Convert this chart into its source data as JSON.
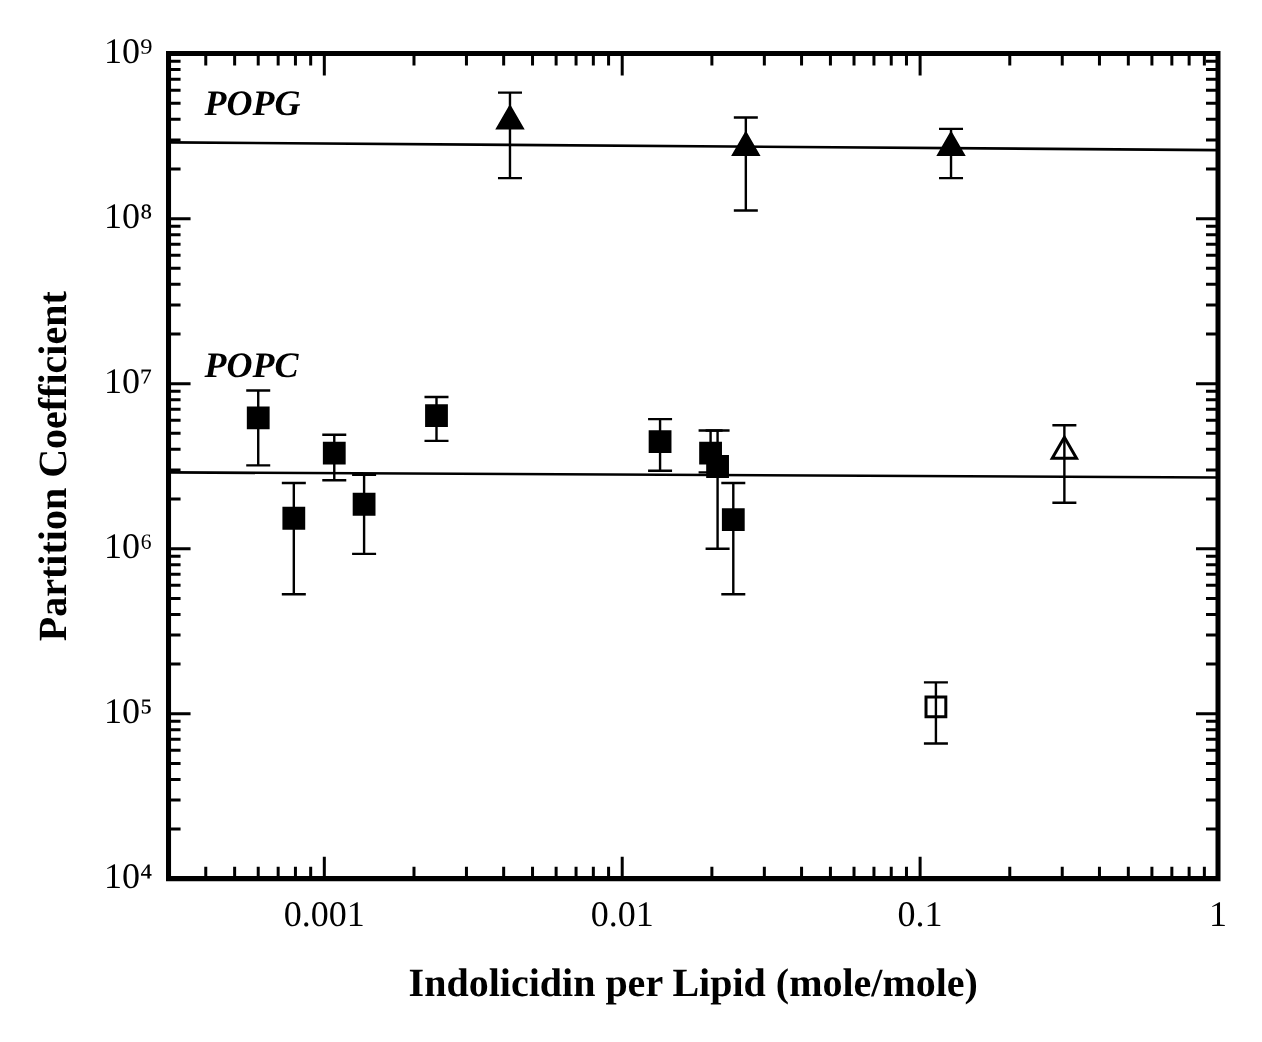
{
  "chart_data": {
    "type": "scatter",
    "xlabel": "Indolicidin per Lipid (mole/mole)",
    "ylabel": "Partition Coefficient",
    "log": "xy",
    "grid": false,
    "legend": false,
    "xlim": [
      0.0003,
      1
    ],
    "ylim": [
      10000,
      1000000000
    ],
    "xticks": [
      {
        "value": 0.0004,
        "label": null
      },
      {
        "value": 0.0005,
        "label": null
      },
      {
        "value": 0.0006,
        "label": null
      },
      {
        "value": 0.0007,
        "label": null
      },
      {
        "value": 0.0008,
        "label": null
      },
      {
        "value": 0.0009,
        "label": null
      },
      0.001,
      {
        "value": 0.002,
        "label": null
      },
      {
        "value": 0.003,
        "label": null
      },
      {
        "value": 0.004,
        "label": null
      },
      {
        "value": 0.005,
        "label": null
      },
      {
        "value": 0.006,
        "label": null
      },
      {
        "value": 0.007,
        "label": null
      },
      {
        "value": 0.008,
        "label": null
      },
      {
        "value": 0.009,
        "label": null
      },
      0.01,
      {
        "value": 0.02,
        "label": null
      },
      {
        "value": 0.03,
        "label": null
      },
      {
        "value": 0.04,
        "label": null
      },
      {
        "value": 0.05,
        "label": null
      },
      {
        "value": 0.06,
        "label": null
      },
      {
        "value": 0.07,
        "label": null
      },
      {
        "value": 0.08,
        "label": null
      },
      {
        "value": 0.09,
        "label": null
      },
      0.1,
      {
        "value": 0.2,
        "label": null
      },
      {
        "value": 0.3,
        "label": null
      },
      {
        "value": 0.4,
        "label": null
      },
      {
        "value": 0.5,
        "label": null
      },
      {
        "value": 0.6,
        "label": null
      },
      {
        "value": 0.7,
        "label": null
      },
      {
        "value": 0.8,
        "label": null
      },
      {
        "value": 0.9,
        "label": null
      },
      1
    ],
    "yticks": [
      {
        "value": 10000,
        "label": "10⁴"
      },
      {
        "value": 20000,
        "label": null
      },
      {
        "value": 30000,
        "label": null
      },
      {
        "value": 40000,
        "label": null
      },
      {
        "value": 50000,
        "label": null
      },
      {
        "value": 60000,
        "label": null
      },
      {
        "value": 70000,
        "label": null
      },
      {
        "value": 80000,
        "label": null
      },
      {
        "value": 90000,
        "label": null
      },
      {
        "value": 100000,
        "label": "10⁵"
      },
      {
        "value": 200000,
        "label": null
      },
      {
        "value": 300000,
        "label": null
      },
      {
        "value": 400000,
        "label": null
      },
      {
        "value": 500000,
        "label": null
      },
      {
        "value": 600000,
        "label": null
      },
      {
        "value": 700000,
        "label": null
      },
      {
        "value": 800000,
        "label": null
      },
      {
        "value": 900000,
        "label": null
      },
      {
        "value": 1000000,
        "label": "10⁶"
      },
      {
        "value": 2000000,
        "label": null
      },
      {
        "value": 3000000,
        "label": null
      },
      {
        "value": 4000000,
        "label": null
      },
      {
        "value": 5000000,
        "label": null
      },
      {
        "value": 6000000,
        "label": null
      },
      {
        "value": 7000000,
        "label": null
      },
      {
        "value": 8000000,
        "label": null
      },
      {
        "value": 9000000,
        "label": null
      },
      {
        "value": 10000000,
        "label": "10⁷"
      },
      {
        "value": 20000000,
        "label": null
      },
      {
        "value": 30000000,
        "label": null
      },
      {
        "value": 40000000,
        "label": null
      },
      {
        "value": 50000000,
        "label": null
      },
      {
        "value": 60000000,
        "label": null
      },
      {
        "value": 70000000,
        "label": null
      },
      {
        "value": 80000000,
        "label": null
      },
      {
        "value": 90000000,
        "label": null
      },
      {
        "value": 100000000,
        "label": "10⁸"
      },
      {
        "value": 200000000,
        "label": null
      },
      {
        "value": 300000000,
        "label": null
      },
      {
        "value": 400000000,
        "label": null
      },
      {
        "value": 500000000,
        "label": null
      },
      {
        "value": 600000000,
        "label": null
      },
      {
        "value": 700000000,
        "label": null
      },
      {
        "value": 800000000,
        "label": null
      },
      {
        "value": 900000000,
        "label": null
      },
      {
        "value": 1000000000,
        "label": "10⁹"
      }
    ],
    "annotations": [
      "POPG",
      "POPC"
    ],
    "series": [
      {
        "marker": "triangle",
        "color": "#000000",
        "x": [
          0.0042,
          0.026,
          0.127
        ],
        "values": [
          390000000,
          270000000,
          270000000
        ],
        "errors": [
          [
            176000000,
            580000000
          ],
          [
            112000000,
            410000000
          ],
          [
            176000000,
            350000000
          ]
        ]
      },
      {
        "marker": "square",
        "color": "#000000",
        "x": [
          0.0006,
          0.00079,
          0.00108,
          0.00136,
          0.00238,
          0.0134,
          0.0198,
          0.0209,
          0.0236
        ],
        "values": [
          6200000,
          1530000,
          3800000,
          1860000,
          6400000,
          4450000,
          3800000,
          3150000,
          1500000
        ],
        "errors": [
          [
            3200000,
            9100000
          ],
          [
            530000,
            2500000
          ],
          [
            2600000,
            4900000
          ],
          [
            930000,
            2800000
          ],
          [
            4500000,
            8300000
          ],
          [
            2970000,
            6100000
          ],
          [
            2900000,
            5200000
          ],
          [
            1000000,
            5200000
          ],
          [
            530000,
            2500000
          ]
        ]
      },
      {
        "marker": "triangle",
        "color": "#ffffff",
        "x": [
          0.305
        ],
        "values": [
          3900000
        ],
        "errors": [
          [
            1900000,
            5600000
          ]
        ]
      },
      {
        "marker": "square",
        "color": "#ffffff",
        "x": [
          0.113
        ],
        "values": [
          110000
        ],
        "errors": [
          [
            66000,
            155000
          ]
        ]
      },
      {
        "type": "line",
        "marker": "none",
        "color": "#000000",
        "x": [
          0.0003,
          1
        ],
        "values": [
          290000000,
          260000000
        ]
      },
      {
        "type": "line",
        "marker": "none",
        "color": "#000000",
        "x": [
          0.0003,
          1
        ],
        "values": [
          2900000,
          2700000
        ]
      }
    ]
  }
}
